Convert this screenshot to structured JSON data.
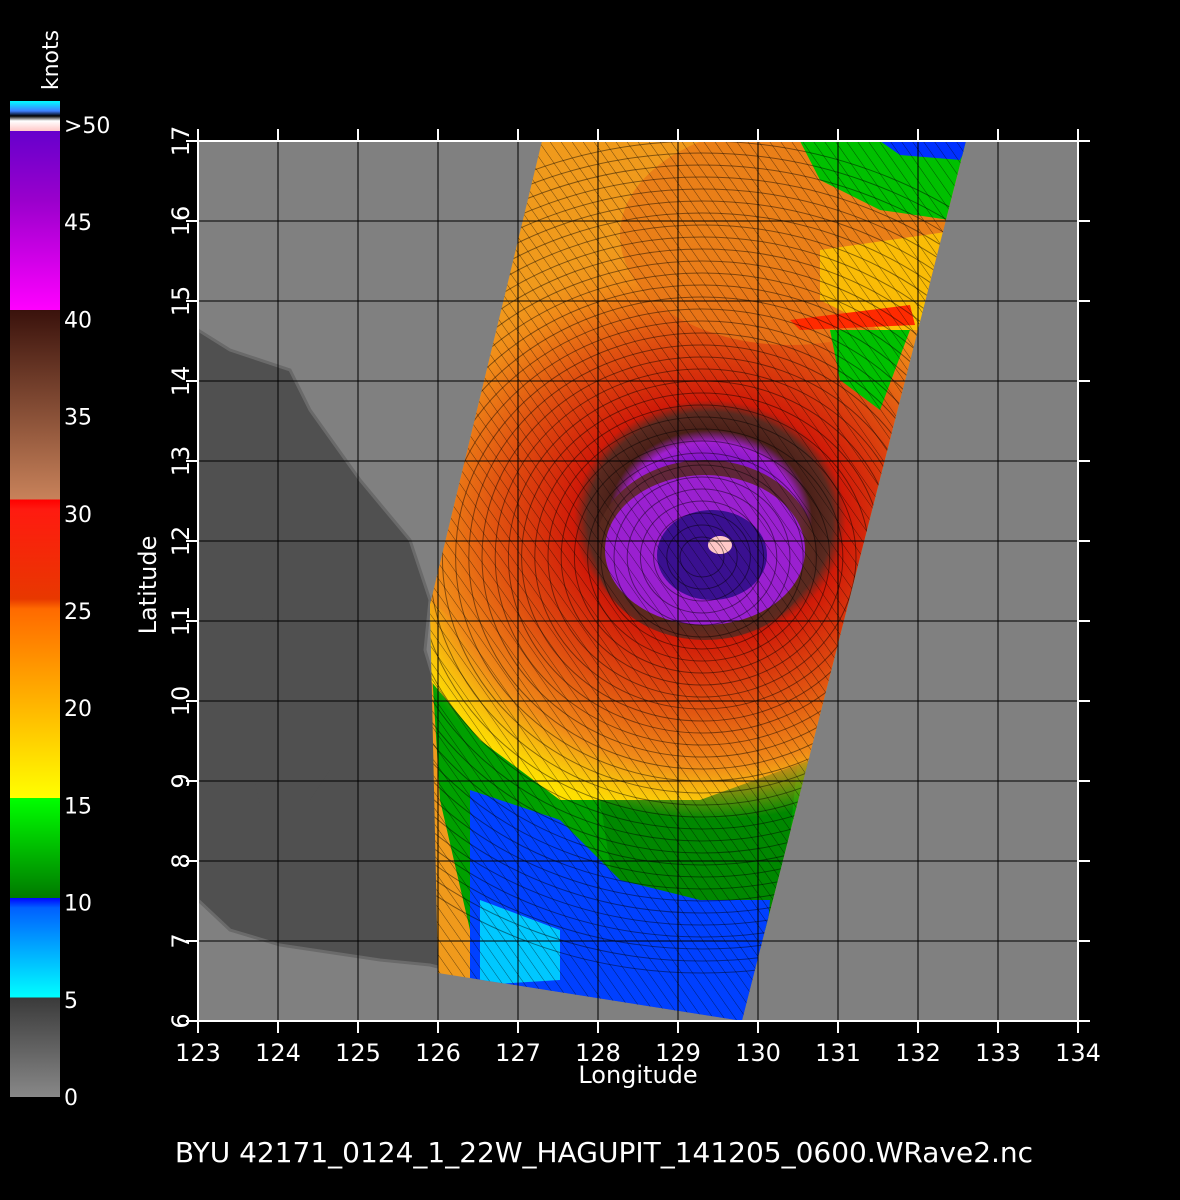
{
  "colorbar": {
    "unit_label": "knots",
    "labels": [
      ">50",
      "45",
      "40",
      "35",
      "30",
      "25",
      "20",
      "15",
      "10",
      "5",
      "0"
    ],
    "colors": {
      "gray_dark": "#444444",
      "gray_light": "#808080",
      "cyan": "#00ffff",
      "blue": "#0000ff",
      "green_dark": "#008000",
      "green": "#00ff00",
      "yellow": "#ffff00",
      "orange": "#ff8c00",
      "red": "#ff0000",
      "brown_light": "#c8825a",
      "brown_dark": "#3c1410",
      "magenta": "#ff00ff",
      "purple": "#6600cc",
      "pink": "#ffc8c8"
    }
  },
  "map": {
    "xlabel": "Longitude",
    "ylabel": "Latitude",
    "lon_ticks": [
      "123",
      "124",
      "125",
      "126",
      "127",
      "128",
      "129",
      "130",
      "131",
      "132",
      "133",
      "134"
    ],
    "lat_ticks": [
      "6",
      "7",
      "8",
      "9",
      "10",
      "11",
      "12",
      "13",
      "14",
      "15",
      "16",
      "17"
    ],
    "lon_range": [
      123,
      134
    ],
    "lat_range": [
      6,
      17
    ],
    "storm_center": [
      129.3,
      11.8
    ],
    "colors": {
      "background": "#000000",
      "ocean": "#808080",
      "land": "#505050",
      "grid": "#000000",
      "frame": "#ffffff"
    }
  },
  "footer": {
    "caption": "BYU  42171_0124_1_22W_HAGUPIT_141205_0600.WRave2.nc"
  }
}
